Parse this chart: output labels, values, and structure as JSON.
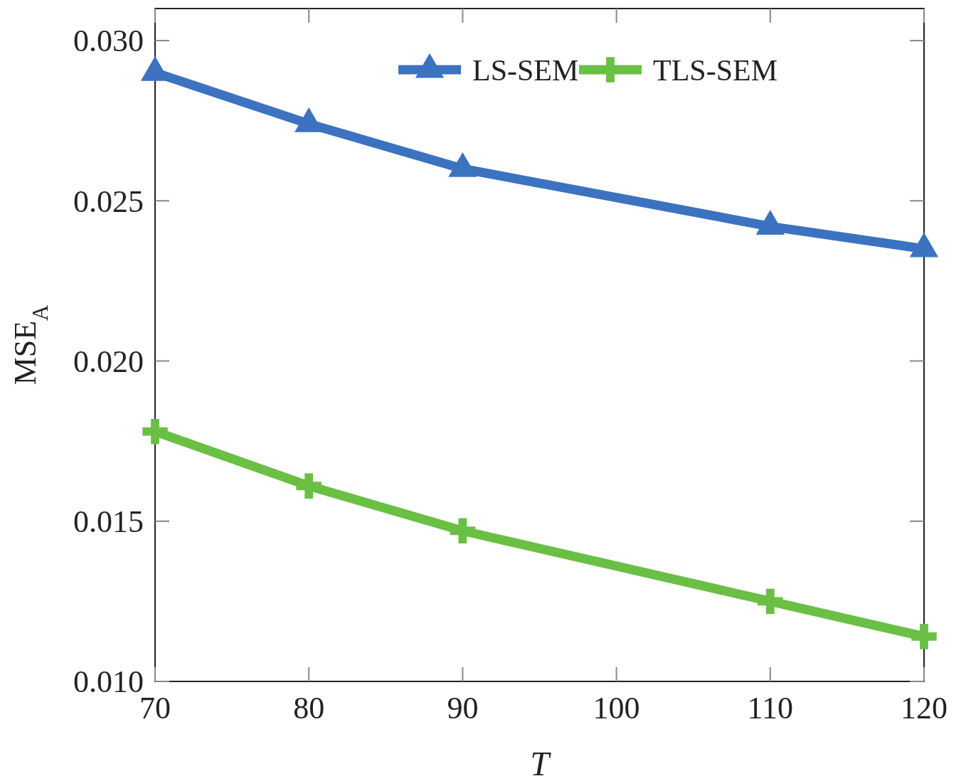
{
  "chart_data": {
    "type": "line",
    "xlabel": "T",
    "ylabel": "MSE$_{A}$",
    "x": [
      70,
      80,
      90,
      110,
      120
    ],
    "series": [
      {
        "name": "LS-SEM",
        "color": "#3b73c0",
        "marker": "triangle",
        "values": [
          0.029,
          0.0274,
          0.026,
          0.0242,
          0.0235
        ]
      },
      {
        "name": "TLS-SEM",
        "color": "#6abf45",
        "marker": "cross",
        "values": [
          0.0178,
          0.0161,
          0.0147,
          0.0125,
          0.0114
        ]
      }
    ],
    "xlim": [
      70,
      120
    ],
    "xticks": [
      70,
      80,
      90,
      100,
      110,
      120
    ],
    "ylim": [
      0.01,
      0.031
    ],
    "yticks": [
      {
        "value": 0.01,
        "label": "0.010"
      },
      {
        "value": 0.015,
        "label": "0.015"
      },
      {
        "value": 0.02,
        "label": "0.020"
      },
      {
        "value": 0.025,
        "label": "0.025"
      },
      {
        "value": 0.03,
        "label": "0.030"
      }
    ],
    "grid": false,
    "legend": "top right",
    "line_style": "solid"
  }
}
